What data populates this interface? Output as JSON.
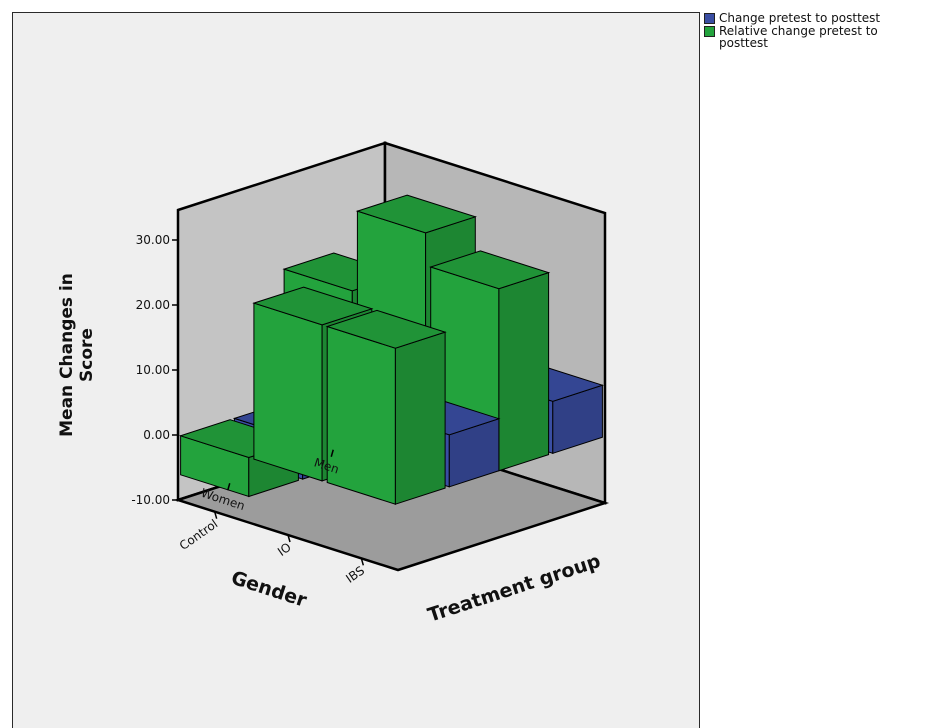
{
  "chart_data": {
    "type": "bar",
    "subtype": "3d-clustered-bar",
    "title": "",
    "ylabel": "Mean Changes in Score",
    "ylabel_lines": [
      "Mean Changes in",
      "Score"
    ],
    "ylim": [
      -10,
      30
    ],
    "yticks": [
      "-10.00",
      "0.00",
      "10.00",
      "20.00",
      "30.00"
    ],
    "gender_axis": {
      "label": "Gender",
      "categories": [
        "Men",
        "Women"
      ]
    },
    "treatment_axis": {
      "label": "Treatment group",
      "categories": [
        "Control",
        "IO",
        "IBS"
      ]
    },
    "legend_position": "top-right",
    "series": [
      {
        "name": "Change pretest to posttest",
        "color": "#3a4ea3",
        "values": {
          "Men": {
            "Control": 8,
            "IO": 7,
            "IBS": 8
          },
          "Women": {
            "Control": -6,
            "IO": 10,
            "IBS": 8
          }
        }
      },
      {
        "name": "Relative change pretest to posttest",
        "color": "#23a33d",
        "values": {
          "Men": {
            "Control": 20.5,
            "IO": 33,
            "IBS": 28
          },
          "Women": {
            "Control": -6,
            "IO": 24,
            "IBS": 24
          }
        }
      }
    ]
  },
  "legend": {
    "items": [
      {
        "label": "Change pretest to posttest",
        "color": "#3a4ea3"
      },
      {
        "label": "Relative change pretest to posttest",
        "color": "#23a33d"
      }
    ]
  }
}
